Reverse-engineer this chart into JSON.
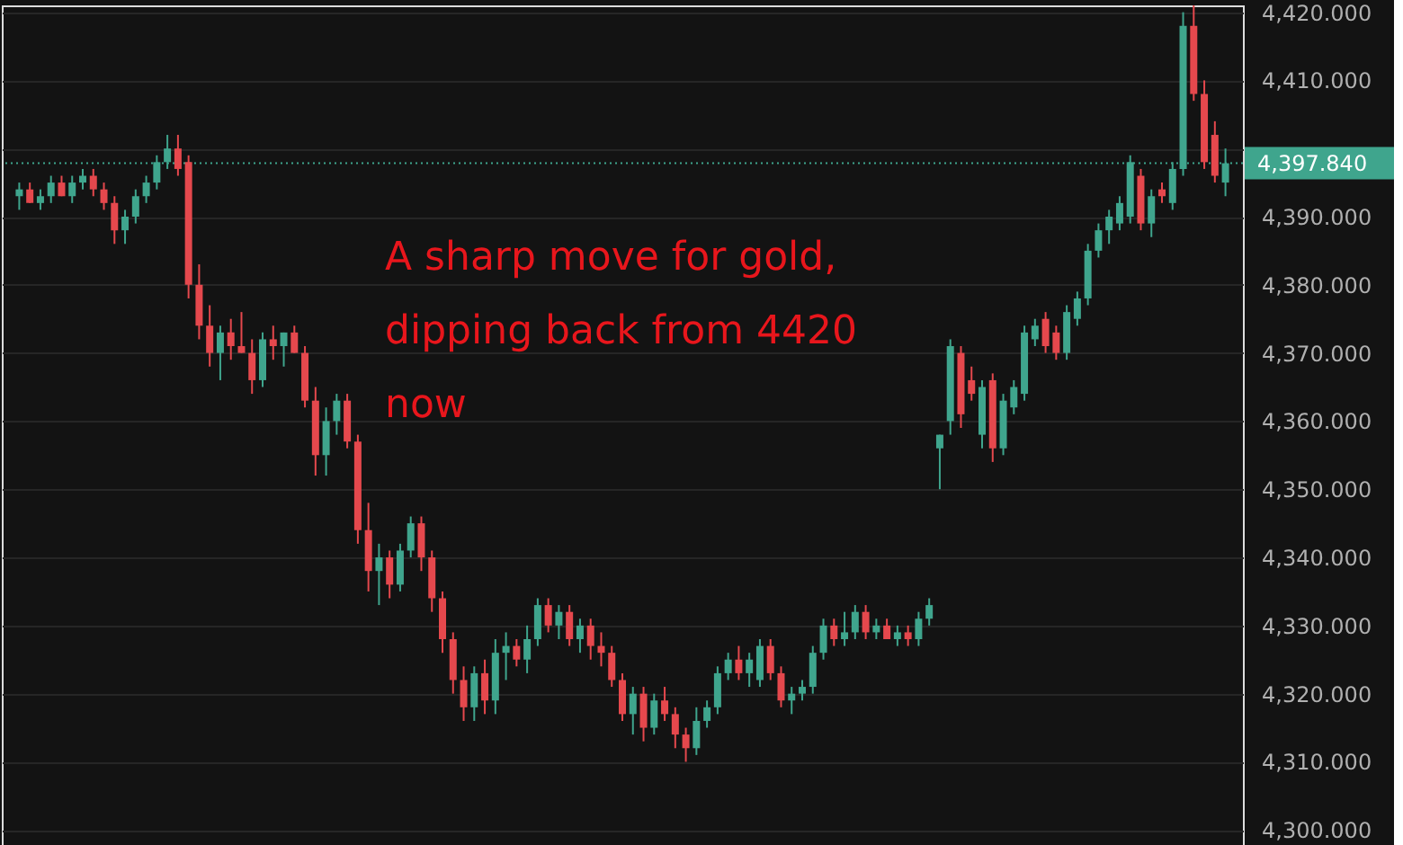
{
  "chart_data": {
    "type": "candlestick",
    "annotations": [
      "A sharp move for gold,\ndipping back from 4420\nnow"
    ],
    "categories": [
      null,
      null,
      null,
      null,
      null,
      null,
      null,
      null,
      null,
      null,
      null,
      null,
      null,
      null,
      null,
      null,
      null,
      null,
      null,
      null,
      null,
      null,
      null,
      null,
      null,
      null,
      null,
      null,
      null,
      null,
      null,
      null,
      null,
      null,
      null,
      null,
      null,
      null,
      null,
      null,
      null,
      null,
      null,
      null,
      null,
      null,
      null,
      null,
      null,
      null,
      null,
      null,
      null,
      null,
      null,
      null,
      null,
      null,
      null,
      null,
      null,
      null,
      null,
      null,
      null,
      null,
      null,
      null,
      null,
      null,
      null,
      null,
      null,
      null,
      null,
      null,
      null,
      null,
      null,
      null,
      null,
      null,
      null,
      null,
      null,
      null,
      null,
      null,
      null,
      null,
      null,
      null,
      null,
      null,
      null,
      null,
      null,
      null,
      null,
      null,
      null,
      null,
      null,
      null,
      null,
      null,
      null,
      null,
      null,
      null,
      null,
      null,
      null,
      null,
      null
    ],
    "ohlc": [
      [
        4393,
        4395,
        4391,
        4394
      ],
      [
        4394,
        4395,
        4392,
        4392
      ],
      [
        4392,
        4394,
        4391,
        4393
      ],
      [
        4393,
        4396,
        4392,
        4395
      ],
      [
        4395,
        4396,
        4393,
        4393
      ],
      [
        4393,
        4396,
        4392,
        4395
      ],
      [
        4395,
        4397,
        4394,
        4396
      ],
      [
        4396,
        4397,
        4393,
        4394
      ],
      [
        4394,
        4395,
        4391,
        4392
      ],
      [
        4392,
        4393,
        4386,
        4388
      ],
      [
        4388,
        4391,
        4386,
        4390
      ],
      [
        4390,
        4394,
        4389,
        4393
      ],
      [
        4393,
        4396,
        4392,
        4395
      ],
      [
        4395,
        4399,
        4394,
        4398
      ],
      [
        4398,
        4402,
        4397,
        4400
      ],
      [
        4400,
        4402,
        4396,
        4397
      ],
      [
        4398,
        4399,
        4378,
        4380
      ],
      [
        4380,
        4383,
        4372,
        4374
      ],
      [
        4374,
        4377,
        4368,
        4370
      ],
      [
        4370,
        4374,
        4366,
        4373
      ],
      [
        4373,
        4375,
        4369,
        4371
      ],
      [
        4371,
        4376,
        4370,
        4370
      ],
      [
        4370,
        4372,
        4364,
        4366
      ],
      [
        4366,
        4373,
        4365,
        4372
      ],
      [
        4372,
        4374,
        4369,
        4371
      ],
      [
        4371,
        4373,
        4368,
        4373
      ],
      [
        4373,
        4374,
        4370,
        4370
      ],
      [
        4370,
        4371,
        4362,
        4363
      ],
      [
        4363,
        4365,
        4352,
        4355
      ],
      [
        4355,
        4362,
        4352,
        4360
      ],
      [
        4360,
        4364,
        4358,
        4363
      ],
      [
        4363,
        4364,
        4356,
        4357
      ],
      [
        4357,
        4358,
        4342,
        4344
      ],
      [
        4344,
        4348,
        4335,
        4338
      ],
      [
        4338,
        4342,
        4333,
        4340
      ],
      [
        4340,
        4341,
        4334,
        4336
      ],
      [
        4336,
        4342,
        4335,
        4341
      ],
      [
        4341,
        4346,
        4340,
        4345
      ],
      [
        4345,
        4346,
        4338,
        4340
      ],
      [
        4340,
        4341,
        4332,
        4334
      ],
      [
        4334,
        4335,
        4326,
        4328
      ],
      [
        4328,
        4329,
        4320,
        4322
      ],
      [
        4322,
        4324,
        4316,
        4318
      ],
      [
        4318,
        4324,
        4316,
        4323
      ],
      [
        4323,
        4325,
        4317,
        4319
      ],
      [
        4319,
        4328,
        4317,
        4326
      ],
      [
        4326,
        4329,
        4322,
        4327
      ],
      [
        4327,
        4328,
        4324,
        4325
      ],
      [
        4325,
        4330,
        4323,
        4328
      ],
      [
        4328,
        4334,
        4327,
        4333
      ],
      [
        4333,
        4334,
        4329,
        4330
      ],
      [
        4330,
        4333,
        4328,
        4332
      ],
      [
        4332,
        4333,
        4327,
        4328
      ],
      [
        4328,
        4331,
        4326,
        4330
      ],
      [
        4330,
        4331,
        4325,
        4327
      ],
      [
        4327,
        4329,
        4324,
        4326
      ],
      [
        4326,
        4327,
        4321,
        4322
      ],
      [
        4322,
        4323,
        4316,
        4317
      ],
      [
        4317,
        4321,
        4314,
        4320
      ],
      [
        4320,
        4321,
        4313,
        4315
      ],
      [
        4315,
        4320,
        4314,
        4319
      ],
      [
        4319,
        4321,
        4316,
        4317
      ],
      [
        4317,
        4318,
        4312,
        4314
      ],
      [
        4314,
        4315,
        4310,
        4312
      ],
      [
        4312,
        4318,
        4311,
        4316
      ],
      [
        4316,
        4319,
        4315,
        4318
      ],
      [
        4318,
        4324,
        4317,
        4323
      ],
      [
        4323,
        4326,
        4322,
        4325
      ],
      [
        4325,
        4327,
        4322,
        4323
      ],
      [
        4323,
        4326,
        4321,
        4325
      ],
      [
        4322,
        4328,
        4321,
        4327
      ],
      [
        4327,
        4328,
        4322,
        4323
      ],
      [
        4323,
        4324,
        4318,
        4319
      ],
      [
        4319,
        4321,
        4317,
        4320
      ],
      [
        4320,
        4322,
        4319,
        4321
      ],
      [
        4321,
        4327,
        4320,
        4326
      ],
      [
        4326,
        4331,
        4325,
        4330
      ],
      [
        4330,
        4331,
        4327,
        4328
      ],
      [
        4328,
        4332,
        4327,
        4329
      ],
      [
        4329,
        4333,
        4328,
        4332
      ],
      [
        4332,
        4333,
        4328,
        4329
      ],
      [
        4329,
        4331,
        4328,
        4330
      ],
      [
        4330,
        4331,
        4328,
        4328
      ],
      [
        4328,
        4330,
        4327,
        4329
      ],
      [
        4329,
        4330,
        4327,
        4328
      ],
      [
        4328,
        4332,
        4327,
        4331
      ],
      [
        4331,
        4334,
        4330,
        4333
      ],
      [
        4356,
        4358,
        4350,
        4358
      ],
      [
        4360,
        4372,
        4358,
        4371
      ],
      [
        4370,
        4371,
        4359,
        4361
      ],
      [
        4366,
        4368,
        4363,
        4364
      ],
      [
        4358,
        4366,
        4356,
        4365
      ],
      [
        4366,
        4367,
        4354,
        4356
      ],
      [
        4356,
        4364,
        4355,
        4363
      ],
      [
        4362,
        4366,
        4361,
        4365
      ],
      [
        4364,
        4374,
        4363,
        4373
      ],
      [
        4372,
        4375,
        4371,
        4374
      ],
      [
        4375,
        4376,
        4370,
        4371
      ],
      [
        4373,
        4374,
        4369,
        4370
      ],
      [
        4370,
        4377,
        4369,
        4376
      ],
      [
        4375,
        4379,
        4374,
        4378
      ],
      [
        4378,
        4386,
        4377,
        4385
      ],
      [
        4385,
        4389,
        4384,
        4388
      ],
      [
        4388,
        4391,
        4386,
        4390
      ],
      [
        4389,
        4393,
        4388,
        4392
      ],
      [
        4390,
        4399,
        4389,
        4398
      ],
      [
        4396,
        4397,
        4388,
        4389
      ],
      [
        4389,
        4394,
        4387,
        4393
      ],
      [
        4394,
        4395,
        4392,
        4393
      ],
      [
        4392,
        4398,
        4391,
        4397
      ],
      [
        4397,
        4420,
        4396,
        4418
      ],
      [
        4418,
        4421,
        4407,
        4408
      ],
      [
        4408,
        4410,
        4397,
        4398
      ],
      [
        4402,
        4404,
        4395,
        4396
      ],
      [
        4395,
        4400,
        4393,
        4397.84
      ]
    ],
    "colors": [
      "#3fa58d",
      "#e5484d",
      "#3fa58d",
      "#3fa58d",
      "#e5484d",
      "#3fa58d",
      "#3fa58d",
      "#e5484d",
      "#e5484d",
      "#e5484d",
      "#3fa58d",
      "#3fa58d",
      "#3fa58d",
      "#3fa58d",
      "#3fa58d",
      "#e5484d",
      "#e5484d",
      "#e5484d",
      "#e5484d",
      "#3fa58d",
      "#e5484d",
      "#e5484d",
      "#e5484d",
      "#3fa58d",
      "#e5484d",
      "#3fa58d",
      "#e5484d",
      "#e5484d",
      "#e5484d",
      "#3fa58d",
      "#3fa58d",
      "#e5484d",
      "#e5484d",
      "#e5484d",
      "#3fa58d",
      "#e5484d",
      "#3fa58d",
      "#3fa58d",
      "#e5484d",
      "#e5484d",
      "#e5484d",
      "#e5484d",
      "#e5484d",
      "#3fa58d",
      "#e5484d",
      "#3fa58d",
      "#3fa58d",
      "#e5484d",
      "#3fa58d",
      "#3fa58d",
      "#e5484d",
      "#3fa58d",
      "#e5484d",
      "#3fa58d",
      "#e5484d",
      "#e5484d",
      "#e5484d",
      "#e5484d",
      "#3fa58d",
      "#e5484d",
      "#3fa58d",
      "#e5484d",
      "#e5484d",
      "#e5484d",
      "#3fa58d",
      "#3fa58d",
      "#3fa58d",
      "#3fa58d",
      "#e5484d",
      "#3fa58d",
      "#3fa58d",
      "#e5484d",
      "#e5484d",
      "#3fa58d",
      "#3fa58d",
      "#3fa58d",
      "#3fa58d",
      "#e5484d",
      "#3fa58d",
      "#3fa58d",
      "#e5484d",
      "#3fa58d",
      "#e5484d",
      "#3fa58d",
      "#e5484d",
      "#3fa58d",
      "#3fa58d",
      "#3fa58d",
      "#3fa58d",
      "#e5484d",
      "#e5484d",
      "#3fa58d",
      "#e5484d",
      "#3fa58d",
      "#3fa58d",
      "#3fa58d",
      "#3fa58d",
      "#e5484d",
      "#e5484d",
      "#3fa58d",
      "#3fa58d",
      "#3fa58d",
      "#3fa58d",
      "#3fa58d",
      "#3fa58d",
      "#3fa58d",
      "#e5484d",
      "#3fa58d",
      "#e5484d",
      "#3fa58d",
      "#3fa58d",
      "#e5484d",
      "#e5484d",
      "#e5484d",
      "#3fa58d"
    ],
    "ylim": [
      4297,
      4421
    ],
    "yticks": [
      {
        "value": 4300,
        "label": "4,300.000"
      },
      {
        "value": 4310,
        "label": "4,310.000"
      },
      {
        "value": 4320,
        "label": "4,320.000"
      },
      {
        "value": 4330,
        "label": "4,330.000"
      },
      {
        "value": 4340,
        "label": "4,340.000"
      },
      {
        "value": 4350,
        "label": "4,350.000"
      },
      {
        "value": 4360,
        "label": "4,360.000"
      },
      {
        "value": 4370,
        "label": "4,370.000"
      },
      {
        "value": 4380,
        "label": "4,380.000"
      },
      {
        "value": 4390,
        "label": "4,390.000"
      },
      {
        "value": 4400,
        "label": null
      },
      {
        "value": 4410,
        "label": "4,410.000"
      },
      {
        "value": 4420,
        "label": "4,420.000"
      }
    ],
    "ref_lines": [
      {
        "axis": "y",
        "value": 4397.84,
        "label": "4,397.840",
        "color": "#3fa58d",
        "line_style": "dotted"
      }
    ],
    "grid": "y",
    "tick_labels": "y"
  }
}
